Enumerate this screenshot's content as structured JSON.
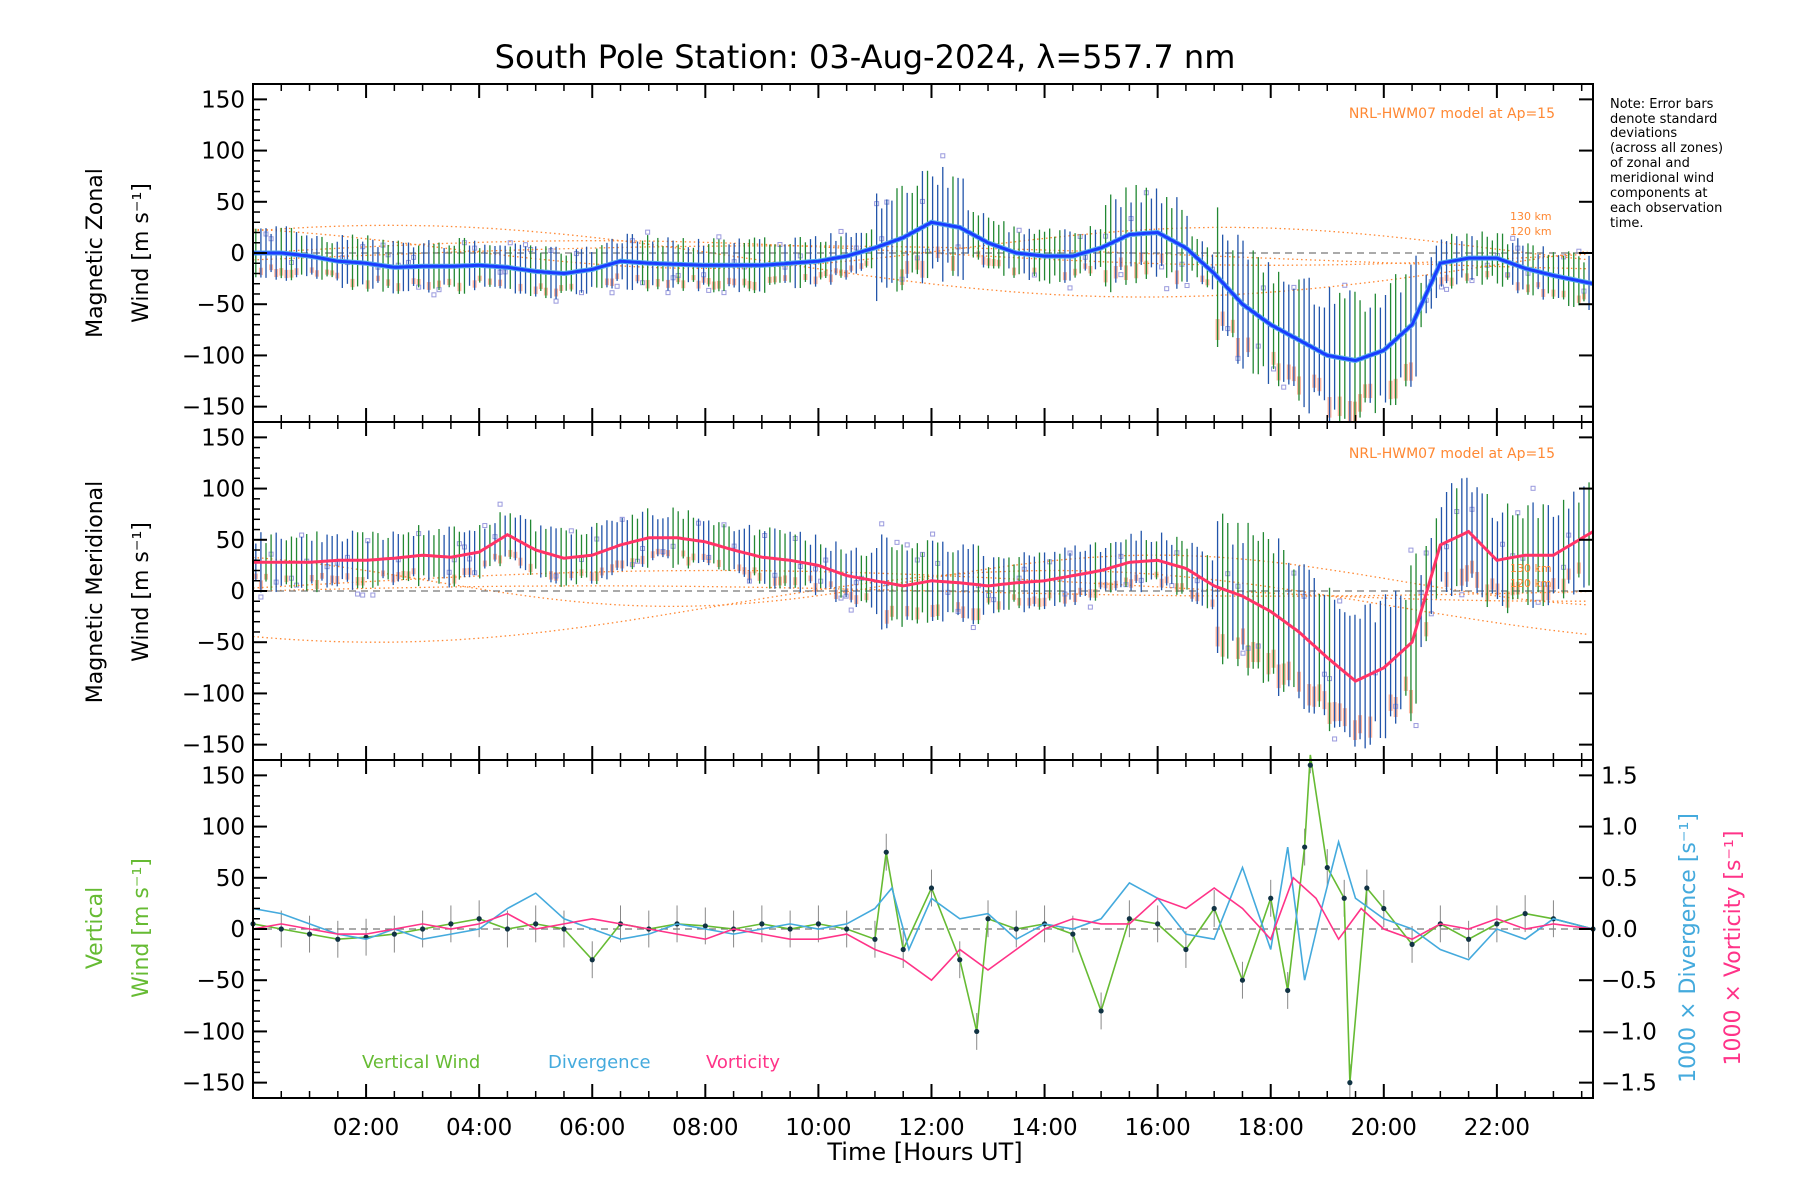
{
  "chart_data": {
    "type": "line",
    "title": "South Pole Station: 03-Aug-2024, λ=557.7 nm",
    "xlabel": "Time [Hours UT]",
    "xlim": [
      0.0,
      23.7
    ],
    "x_ticks": [
      2,
      4,
      6,
      8,
      10,
      12,
      14,
      16,
      18,
      20,
      22
    ],
    "x_tick_labels": [
      "02:00",
      "04:00",
      "06:00",
      "08:00",
      "10:00",
      "12:00",
      "14:00",
      "16:00",
      "18:00",
      "20:00",
      "22:00"
    ],
    "y_ticks": [
      150,
      100,
      50,
      0,
      -50,
      -100,
      -150
    ],
    "y_tick_labels": [
      "150",
      "100",
      "50",
      "0",
      "−50",
      "−100",
      "−150"
    ],
    "right_ticks": [
      1.5,
      1.0,
      0.5,
      0.0,
      -0.5,
      -1.0,
      -1.5
    ],
    "right_tick_labels": [
      "1.5",
      "1.0",
      "0.5",
      "0.0",
      "−0.5",
      "−1.0",
      "−1.5"
    ],
    "note": [
      "Note: Error bars",
      "denote standard",
      "deviations",
      "(across all zones)",
      "of zonal and",
      "meridional wind",
      "components at",
      "each observation",
      "time."
    ],
    "colors": {
      "zonal": "#1a3cff",
      "zonal_light": "#55aaee",
      "meridional": "#ff3366",
      "errorbar_green": "#228833",
      "errorbar_blue": "#2255aa",
      "scatter": "#9999dd",
      "salmon": "#ff9977",
      "model": "#ff8833",
      "vertical": "#66bb33",
      "divergence": "#44aadd",
      "vorticity": "#ff3388",
      "axis": "#000000"
    },
    "panels": [
      {
        "name": "zonal",
        "ylabel_line1": "Magnetic Zonal",
        "ylabel_line2": "Wind [m s⁻¹]",
        "ylim": [
          -165,
          165
        ],
        "model_label": "NRL-HWM07 model at Ap=15",
        "model_heights": [
          "130 km",
          "120 km"
        ],
        "series": [
          {
            "name": "Magnetic Zonal Wind",
            "x": [
              0.0,
              0.5,
              1.0,
              1.5,
              2.0,
              2.5,
              3.0,
              3.5,
              4.0,
              4.5,
              5.0,
              5.5,
              6.0,
              6.5,
              7.0,
              7.5,
              8.0,
              8.5,
              9.0,
              9.5,
              10.0,
              10.5,
              11.0,
              11.5,
              12.0,
              12.5,
              13.0,
              13.5,
              14.0,
              14.5,
              15.0,
              15.5,
              16.0,
              16.5,
              17.0,
              17.5,
              18.0,
              18.5,
              19.0,
              19.5,
              20.0,
              20.5,
              21.0,
              21.5,
              22.0,
              22.5,
              23.0,
              23.7
            ],
            "values": [
              0,
              0,
              -3,
              -8,
              -10,
              -14,
              -13,
              -13,
              -12,
              -14,
              -18,
              -20,
              -16,
              -8,
              -10,
              -11,
              -12,
              -12,
              -12,
              -10,
              -8,
              -3,
              5,
              15,
              30,
              25,
              10,
              0,
              -3,
              -3,
              5,
              18,
              20,
              5,
              -20,
              -50,
              -70,
              -85,
              -100,
              -105,
              -95,
              -70,
              -10,
              -5,
              -5,
              -15,
              -22,
              -30
            ]
          }
        ]
      },
      {
        "name": "meridional",
        "ylabel_line1": "Magnetic Meridional",
        "ylabel_line2": "Wind [m s⁻¹]",
        "ylim": [
          -165,
          165
        ],
        "model_label": "NRL-HWM07 model at Ap=15",
        "model_heights": [
          "130 km",
          "120 km"
        ],
        "series": [
          {
            "name": "Magnetic Meridional Wind",
            "x": [
              0.0,
              0.5,
              1.0,
              1.5,
              2.0,
              2.5,
              3.0,
              3.5,
              4.0,
              4.5,
              5.0,
              5.5,
              6.0,
              6.5,
              7.0,
              7.5,
              8.0,
              8.5,
              9.0,
              9.5,
              10.0,
              10.5,
              11.0,
              11.5,
              12.0,
              12.5,
              13.0,
              13.5,
              14.0,
              14.5,
              15.0,
              15.5,
              16.0,
              16.5,
              17.0,
              17.5,
              18.0,
              18.5,
              19.0,
              19.5,
              20.0,
              20.5,
              21.0,
              21.5,
              22.0,
              22.5,
              23.0,
              23.7
            ],
            "values": [
              28,
              28,
              28,
              30,
              30,
              32,
              35,
              33,
              38,
              55,
              40,
              32,
              35,
              45,
              52,
              52,
              48,
              40,
              33,
              30,
              25,
              15,
              10,
              5,
              10,
              8,
              5,
              8,
              10,
              15,
              20,
              28,
              30,
              22,
              5,
              -5,
              -20,
              -40,
              -65,
              -88,
              -75,
              -50,
              45,
              58,
              30,
              35,
              35,
              58
            ]
          }
        ]
      },
      {
        "name": "vertical",
        "ylabel_line1": "Vertical",
        "ylabel_line2": "Wind [m s⁻¹]",
        "right_label_div": "1000 × Divergence [s⁻¹]",
        "right_label_vor": "1000 × Vorticity [s⁻¹]",
        "ylim": [
          -165,
          165
        ],
        "right_ylim": [
          -1.65,
          1.65
        ],
        "legend": [
          "Vertical Wind",
          "Divergence",
          "Vorticity"
        ],
        "series": [
          {
            "name": "Vertical Wind",
            "x": [
              0.0,
              0.5,
              1.0,
              1.5,
              2.0,
              2.5,
              3.0,
              3.5,
              4.0,
              4.5,
              5.0,
              5.5,
              6.0,
              6.5,
              7.0,
              7.5,
              8.0,
              8.5,
              9.0,
              9.5,
              10.0,
              10.5,
              11.0,
              11.2,
              11.5,
              12.0,
              12.5,
              12.8,
              13.0,
              13.5,
              14.0,
              14.5,
              15.0,
              15.5,
              16.0,
              16.5,
              17.0,
              17.5,
              18.0,
              18.3,
              18.6,
              18.7,
              19.0,
              19.3,
              19.4,
              19.7,
              20.0,
              20.5,
              21.0,
              21.5,
              22.0,
              22.5,
              23.0,
              23.7
            ],
            "values": [
              5,
              0,
              -5,
              -10,
              -8,
              -5,
              0,
              5,
              10,
              0,
              5,
              0,
              -30,
              5,
              0,
              5,
              3,
              0,
              5,
              0,
              5,
              0,
              -10,
              75,
              -20,
              40,
              -30,
              -100,
              10,
              0,
              5,
              -5,
              -80,
              10,
              5,
              -20,
              20,
              -50,
              30,
              -60,
              80,
              170,
              60,
              30,
              -150,
              40,
              20,
              -15,
              5,
              -10,
              5,
              15,
              10,
              0
            ]
          },
          {
            "name": "1000 × Divergence",
            "x": [
              0.0,
              0.5,
              1.0,
              1.5,
              2.0,
              2.5,
              3.0,
              3.5,
              4.0,
              4.5,
              5.0,
              5.5,
              6.0,
              6.5,
              7.0,
              7.5,
              8.0,
              8.5,
              9.0,
              9.5,
              10.0,
              10.5,
              11.0,
              11.3,
              11.6,
              12.0,
              12.5,
              13.0,
              13.5,
              14.0,
              14.5,
              15.0,
              15.5,
              16.0,
              16.5,
              17.0,
              17.5,
              18.0,
              18.3,
              18.6,
              18.9,
              19.2,
              19.5,
              20.0,
              20.5,
              21.0,
              21.5,
              22.0,
              22.5,
              23.0,
              23.7
            ],
            "values": [
              0.2,
              0.15,
              0.05,
              -0.05,
              -0.1,
              0.0,
              -0.1,
              -0.05,
              0.0,
              0.2,
              0.35,
              0.1,
              0.0,
              -0.1,
              -0.05,
              0.05,
              0.0,
              -0.05,
              0.0,
              0.05,
              0.0,
              0.05,
              0.2,
              0.4,
              -0.2,
              0.3,
              0.1,
              0.15,
              -0.1,
              0.05,
              0.0,
              0.1,
              0.45,
              0.3,
              -0.05,
              -0.1,
              0.6,
              -0.2,
              0.8,
              -0.5,
              0.2,
              0.85,
              0.3,
              0.1,
              0.0,
              -0.2,
              -0.3,
              0.0,
              -0.1,
              0.1,
              0.0
            ]
          },
          {
            "name": "1000 × Vorticity",
            "x": [
              0.0,
              0.5,
              1.0,
              1.5,
              2.0,
              2.5,
              3.0,
              3.5,
              4.0,
              4.5,
              5.0,
              5.5,
              6.0,
              6.5,
              7.0,
              7.5,
              8.0,
              8.5,
              9.0,
              9.5,
              10.0,
              10.5,
              11.0,
              11.5,
              12.0,
              12.5,
              13.0,
              13.5,
              14.0,
              14.5,
              15.0,
              15.5,
              16.0,
              16.5,
              17.0,
              17.5,
              18.0,
              18.4,
              18.8,
              19.2,
              19.6,
              20.0,
              20.5,
              21.0,
              21.5,
              22.0,
              22.5,
              23.0,
              23.7
            ],
            "values": [
              0.0,
              0.05,
              0.0,
              -0.05,
              -0.05,
              0.0,
              0.05,
              0.0,
              0.05,
              0.15,
              0.0,
              0.05,
              0.1,
              0.05,
              0.0,
              -0.05,
              -0.1,
              0.0,
              -0.05,
              -0.1,
              -0.1,
              -0.05,
              -0.2,
              -0.3,
              -0.5,
              -0.2,
              -0.4,
              -0.2,
              0.0,
              0.1,
              0.05,
              0.05,
              0.3,
              0.2,
              0.4,
              0.2,
              -0.1,
              0.5,
              0.3,
              -0.1,
              0.2,
              0.0,
              -0.1,
              0.05,
              0.0,
              0.1,
              0.0,
              0.05,
              0.0
            ]
          }
        ]
      }
    ]
  }
}
